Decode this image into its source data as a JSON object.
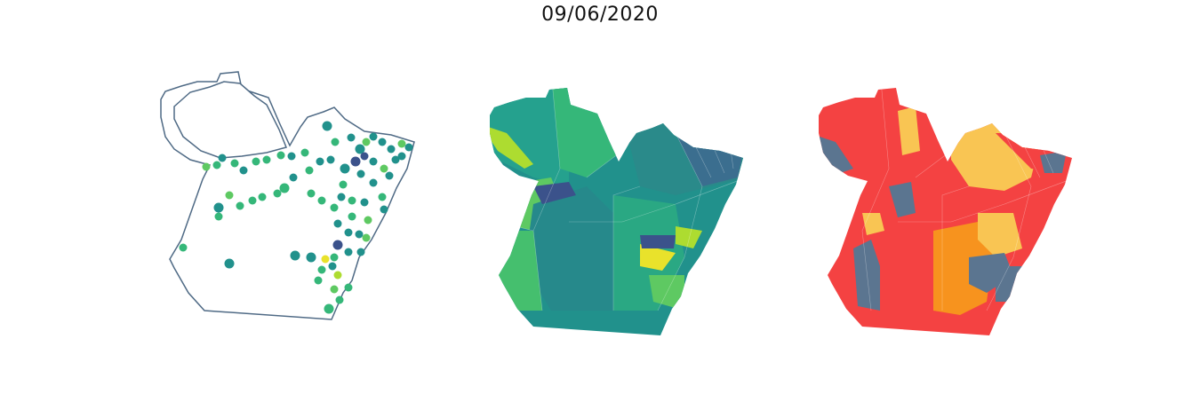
{
  "title": "09/06/2020",
  "colors": {
    "outline": "#4f6a85",
    "viridis_dark": "#3b528b",
    "viridis_teal": "#21918c",
    "viridis_teal2": "#25a18e",
    "viridis_green": "#35b779",
    "viridis_lightgreen": "#5ec962",
    "viridis_yellowgreen": "#addc30",
    "viridis_yellow": "#e9e22b",
    "risk_red": "#f44242",
    "risk_orange": "#f7931e",
    "risk_yellow": "#f9c553",
    "risk_slate": "#5b7590"
  },
  "panels": [
    {
      "name": "bubble-map",
      "style": "points"
    },
    {
      "name": "choropleth-viridis",
      "style": "viridis"
    },
    {
      "name": "choropleth-risk",
      "style": "risk"
    }
  ]
}
